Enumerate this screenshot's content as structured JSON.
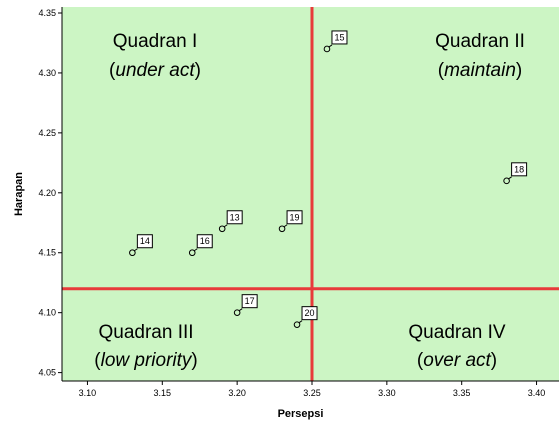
{
  "chart_data": {
    "type": "scatter",
    "xlabel": "Persepsi",
    "ylabel": "Harapan",
    "xlim": [
      3.083,
      3.415
    ],
    "ylim": [
      4.043,
      4.355
    ],
    "x_ticks": [
      "3.10",
      "3.15",
      "3.20",
      "3.25",
      "3.30",
      "3.35",
      "3.40"
    ],
    "y_ticks": [
      "4.35",
      "4.30",
      "4.25",
      "4.20",
      "4.15",
      "4.10",
      "4.05"
    ],
    "grid": false,
    "reference_lines": {
      "x": 3.25,
      "y": 4.12
    },
    "colors": {
      "background": "#ccf5c4",
      "reference_line": "#e83a3a",
      "marker": "#000000"
    },
    "points": [
      {
        "label": "13",
        "x": 3.19,
        "y": 4.17
      },
      {
        "label": "14",
        "x": 3.13,
        "y": 4.15
      },
      {
        "label": "15",
        "x": 3.26,
        "y": 4.32
      },
      {
        "label": "16",
        "x": 3.17,
        "y": 4.15
      },
      {
        "label": "17",
        "x": 3.2,
        "y": 4.1
      },
      {
        "label": "18",
        "x": 3.38,
        "y": 4.21
      },
      {
        "label": "19",
        "x": 3.23,
        "y": 4.17
      },
      {
        "label": "20",
        "x": 3.24,
        "y": 4.09
      }
    ],
    "quadrants": [
      {
        "title": "Quadran I",
        "subtitle": "under act"
      },
      {
        "title": "Quadran II",
        "subtitle": "maintain"
      },
      {
        "title": "Quadran III",
        "subtitle": "low priority"
      },
      {
        "title": "Quadran IV",
        "subtitle": "over act"
      }
    ]
  }
}
